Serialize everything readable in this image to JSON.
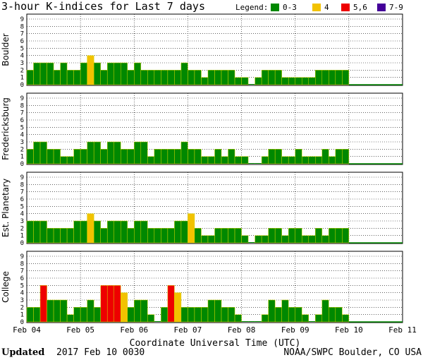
{
  "chart_data": {
    "type": "bar",
    "title": "3-hour K-indices for Last 7 days",
    "legend": {
      "label": "Legend:",
      "placement": "top-right",
      "entries": [
        {
          "label": "0-3",
          "color": "#008800"
        },
        {
          "label": "4",
          "color": "#f2c200"
        },
        {
          "label": "5,6",
          "color": "#ee0000"
        },
        {
          "label": "7-9",
          "color": "#440099"
        }
      ]
    },
    "xlabel": "Coordinate Universal Time (UTC)",
    "x_ticks": [
      "Feb 04",
      "Feb 05",
      "Feb 06",
      "Feb 07",
      "Feb 08",
      "Feb 09",
      "Feb 10",
      "Feb 11"
    ],
    "ylim": [
      0,
      9
    ],
    "y_ticks": [
      "0",
      "1",
      "2",
      "3",
      "4",
      "5",
      "6",
      "7",
      "8",
      "9"
    ],
    "grid": true,
    "panels": [
      {
        "name": "Boulder",
        "values": [
          2,
          3,
          3,
          3,
          2,
          3,
          2,
          2,
          3,
          4,
          3,
          2,
          3,
          3,
          3,
          2,
          3,
          2,
          2,
          2,
          2,
          2,
          2,
          3,
          2,
          2,
          1,
          2,
          2,
          2,
          2,
          1,
          1,
          0,
          1,
          2,
          2,
          2,
          1,
          1,
          1,
          1,
          1,
          2,
          2,
          2,
          2,
          2
        ]
      },
      {
        "name": "Fredericksburg",
        "values": [
          2,
          3,
          3,
          2,
          2,
          1,
          1,
          2,
          2,
          3,
          3,
          2,
          3,
          3,
          2,
          2,
          3,
          3,
          1,
          2,
          2,
          2,
          2,
          3,
          2,
          2,
          1,
          1,
          2,
          1,
          2,
          1,
          1,
          0,
          0,
          1,
          2,
          2,
          1,
          1,
          2,
          1,
          1,
          1,
          2,
          1,
          2,
          2
        ]
      },
      {
        "name": "Est. Planetary",
        "values": [
          3,
          3,
          3,
          2,
          2,
          2,
          2,
          3,
          3,
          4,
          3,
          2,
          3,
          3,
          3,
          2,
          3,
          3,
          2,
          2,
          2,
          2,
          3,
          3,
          4,
          2,
          1,
          1,
          2,
          2,
          2,
          2,
          1,
          0,
          1,
          1,
          2,
          2,
          1,
          2,
          2,
          1,
          1,
          2,
          1,
          2,
          2,
          2
        ]
      },
      {
        "name": "College",
        "values": [
          2,
          2,
          5,
          3,
          3,
          3,
          1,
          2,
          2,
          3,
          2,
          5,
          5,
          5,
          4,
          2,
          3,
          3,
          1,
          0,
          2,
          5,
          4,
          2,
          2,
          2,
          2,
          3,
          3,
          2,
          2,
          1,
          0,
          0,
          0,
          1,
          3,
          2,
          3,
          2,
          2,
          1,
          0,
          1,
          3,
          2,
          2,
          1
        ]
      }
    ]
  },
  "footer": {
    "updated_label": "Updated",
    "updated_value": "2017 Feb 10 0030",
    "source": "NOAA/SWPC Boulder, CO USA"
  }
}
